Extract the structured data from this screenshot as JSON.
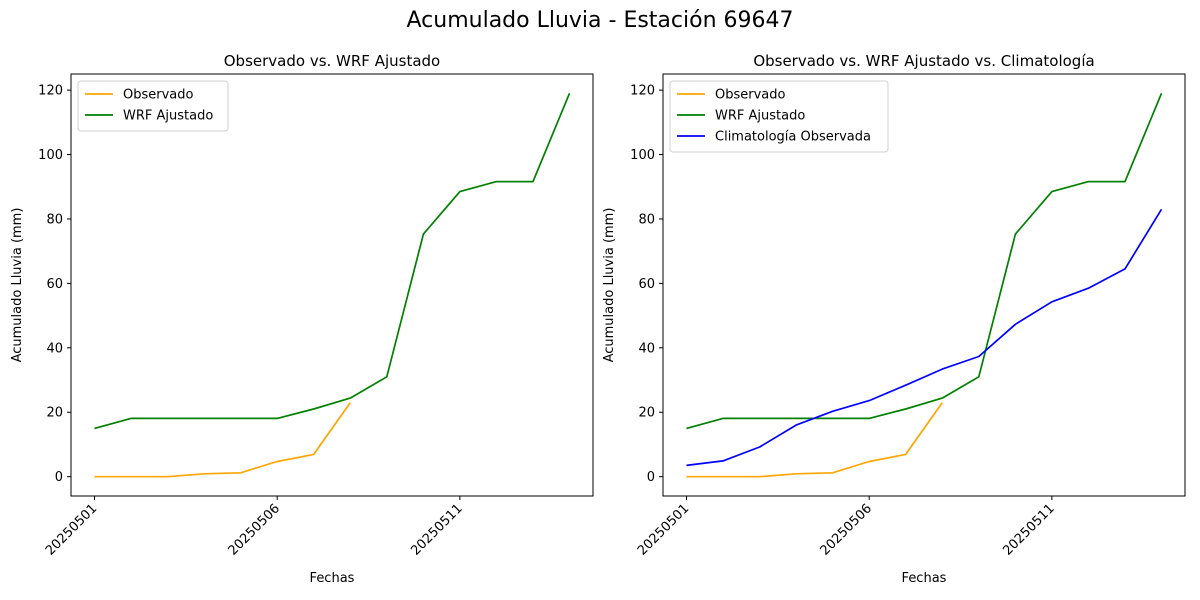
{
  "suptitle": "Acumulado Lluvia - Estación 69647",
  "chart_data": [
    {
      "type": "line",
      "title": "Observado vs. WRF Ajustado",
      "xlabel": "Fechas",
      "ylabel": "Acumulado Lluvia (mm)",
      "x": [
        "20250501",
        "20250502",
        "20250503",
        "20250504",
        "20250505",
        "20250506",
        "20250507",
        "20250508",
        "20250509",
        "20250510",
        "20250511",
        "20250512",
        "20250513",
        "20250514"
      ],
      "xticks": [
        "20250501",
        "20250506",
        "20250511"
      ],
      "yticks": [
        0,
        20,
        40,
        60,
        80,
        100,
        120
      ],
      "ylim": [
        -6,
        125
      ],
      "grid": false,
      "legend": "top-left",
      "series": [
        {
          "name": "Observado",
          "color": "#FFA500",
          "values": [
            0,
            0,
            0,
            0.9,
            1.2,
            4.7,
            6.9,
            23,
            null,
            null,
            null,
            null,
            null,
            null
          ]
        },
        {
          "name": "WRF Ajustado",
          "color": "#008000",
          "values": [
            15,
            18.1,
            18.1,
            18.1,
            18.1,
            18.1,
            21,
            24.4,
            31,
            75.3,
            88.5,
            91.6,
            91.6,
            119
          ]
        }
      ]
    },
    {
      "type": "line",
      "title": "Observado vs. WRF Ajustado vs. Climatología",
      "xlabel": "Fechas",
      "ylabel": "Acumulado Lluvia (mm)",
      "x": [
        "20250501",
        "20250502",
        "20250503",
        "20250504",
        "20250505",
        "20250506",
        "20250507",
        "20250508",
        "20250509",
        "20250510",
        "20250511",
        "20250512",
        "20250513",
        "20250514"
      ],
      "xticks": [
        "20250501",
        "20250506",
        "20250511"
      ],
      "yticks": [
        0,
        20,
        40,
        60,
        80,
        100,
        120
      ],
      "ylim": [
        -6,
        125
      ],
      "grid": false,
      "legend": "top-left",
      "series": [
        {
          "name": "Observado",
          "color": "#FFA500",
          "values": [
            0,
            0,
            0,
            0.9,
            1.2,
            4.7,
            6.9,
            23,
            null,
            null,
            null,
            null,
            null,
            null
          ]
        },
        {
          "name": "WRF Ajustado",
          "color": "#008000",
          "values": [
            15,
            18.1,
            18.1,
            18.1,
            18.1,
            18.1,
            21,
            24.4,
            31,
            75.3,
            88.5,
            91.6,
            91.6,
            119
          ]
        },
        {
          "name": "Climatología Observada",
          "color": "#0000FF",
          "values": [
            3.5,
            4.9,
            9.2,
            16,
            20.3,
            23.6,
            28.4,
            33.4,
            37.3,
            47.3,
            54.3,
            58.5,
            64.5,
            83
          ]
        }
      ]
    }
  ]
}
